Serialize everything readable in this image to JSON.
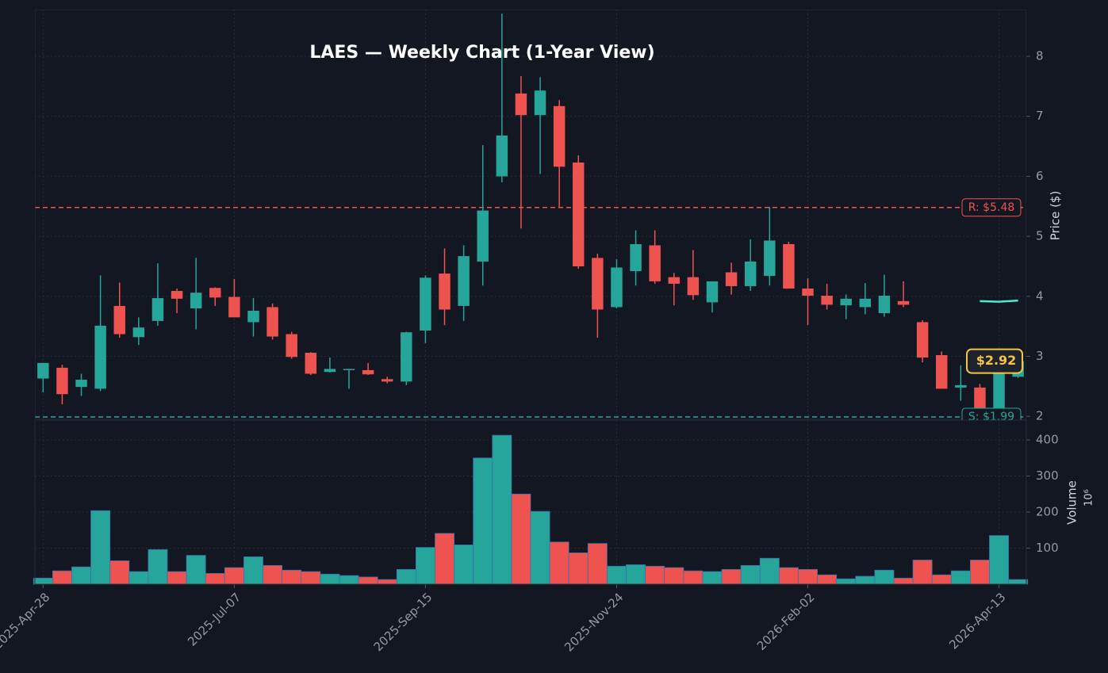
{
  "chart_data": [
    {
      "type": "candlestick",
      "title": "LAES — Weekly Chart (1-Year View)",
      "y_label": "Price ($)",
      "x": [
        "2025-Apr-28",
        "2025-May-05",
        "2025-May-12",
        "2025-May-19",
        "2025-May-26",
        "2025-Jun-02",
        "2025-Jun-09",
        "2025-Jun-16",
        "2025-Jun-23",
        "2025-Jun-30",
        "2025-Jul-07",
        "2025-Jul-14",
        "2025-Jul-21",
        "2025-Jul-28",
        "2025-Aug-04",
        "2025-Aug-11",
        "2025-Aug-18",
        "2025-Aug-25",
        "2025-Sep-01",
        "2025-Sep-08",
        "2025-Sep-15",
        "2025-Sep-22",
        "2025-Sep-29",
        "2025-Oct-06",
        "2025-Oct-13",
        "2025-Oct-20",
        "2025-Oct-27",
        "2025-Nov-03",
        "2025-Nov-10",
        "2025-Nov-17",
        "2025-Nov-24",
        "2025-Dec-01",
        "2025-Dec-08",
        "2025-Dec-15",
        "2025-Dec-22",
        "2025-Dec-29",
        "2026-Jan-05",
        "2026-Jan-12",
        "2026-Jan-19",
        "2026-Jan-26",
        "2026-Feb-02",
        "2026-Feb-09",
        "2026-Feb-16",
        "2026-Feb-23",
        "2026-Mar-02",
        "2026-Mar-09",
        "2026-Mar-16",
        "2026-Mar-23",
        "2026-Mar-30",
        "2026-Apr-06",
        "2026-Apr-13",
        "2026-Apr-20"
      ],
      "open": [
        2.63,
        2.81,
        2.49,
        2.46,
        3.84,
        3.32,
        3.59,
        4.09,
        3.8,
        4.14,
        3.99,
        3.57,
        3.82,
        3.37,
        3.06,
        2.74,
        2.77,
        2.77,
        2.62,
        2.58,
        3.43,
        4.38,
        3.84,
        4.58,
        6.0,
        7.38,
        7.02,
        7.17,
        6.23,
        4.64,
        3.82,
        4.42,
        4.85,
        4.32,
        4.32,
        3.9,
        4.4,
        4.17,
        4.34,
        4.87,
        4.13,
        4.01,
        3.85,
        3.82,
        3.72,
        3.92,
        3.57,
        3.02,
        2.48,
        2.48,
        1.93,
        2.66
      ],
      "high": [
        2.89,
        2.86,
        2.71,
        4.35,
        4.23,
        3.65,
        4.55,
        4.13,
        4.64,
        4.15,
        4.29,
        3.97,
        3.88,
        3.41,
        3.07,
        2.98,
        2.79,
        2.89,
        2.66,
        3.41,
        4.35,
        4.8,
        4.85,
        6.52,
        8.71,
        7.67,
        7.65,
        7.27,
        6.35,
        4.71,
        4.62,
        5.1,
        5.1,
        4.39,
        4.77,
        4.25,
        4.56,
        4.95,
        5.49,
        4.91,
        4.3,
        4.21,
        4.03,
        4.22,
        4.36,
        4.25,
        3.6,
        3.08,
        2.85,
        2.54,
        2.95,
        2.95
      ],
      "low": [
        2.4,
        2.2,
        2.34,
        2.42,
        3.31,
        3.19,
        3.51,
        3.72,
        3.45,
        3.84,
        3.65,
        3.33,
        3.28,
        2.96,
        2.69,
        2.73,
        2.46,
        2.69,
        2.55,
        2.52,
        3.22,
        3.52,
        3.59,
        4.18,
        5.9,
        5.13,
        6.04,
        5.47,
        4.46,
        3.31,
        3.8,
        4.18,
        4.21,
        3.85,
        3.94,
        3.73,
        4.03,
        4.09,
        4.18,
        4.13,
        3.52,
        3.78,
        3.62,
        3.7,
        3.66,
        3.82,
        2.9,
        2.46,
        2.26,
        2.11,
        1.9,
        2.64
      ],
      "close": [
        2.89,
        2.37,
        2.61,
        3.51,
        3.37,
        3.48,
        3.97,
        3.96,
        4.06,
        3.98,
        3.65,
        3.76,
        3.33,
        2.99,
        2.71,
        2.79,
        2.79,
        2.7,
        2.58,
        3.4,
        4.31,
        3.78,
        4.67,
        5.43,
        6.68,
        7.02,
        7.43,
        6.16,
        4.5,
        3.78,
        4.48,
        4.87,
        4.25,
        4.21,
        4.02,
        4.25,
        4.17,
        4.58,
        4.93,
        4.13,
        4.01,
        3.86,
        3.96,
        3.96,
        4.01,
        3.86,
        2.98,
        2.46,
        2.52,
        2.12,
        2.88,
        2.92
      ],
      "up_color": "#26a69a",
      "down_color": "#ef5350",
      "overlay_line": {
        "x": [
          "2026-Apr-06",
          "2026-Apr-13",
          "2026-Apr-20"
        ],
        "values": [
          3.92,
          3.91,
          3.93
        ],
        "color": "#4de8d8"
      },
      "levels": [
        {
          "label": "R: $5.48",
          "value": 5.48,
          "color": "#ef5350"
        },
        {
          "label": "S: $1.99",
          "value": 1.99,
          "color": "#26a69a"
        }
      ],
      "last_price": {
        "value": 2.92,
        "label": "$2.92",
        "color": "#f5c542"
      },
      "xlim": [
        "2025-Apr-25",
        "2026-Apr-23"
      ],
      "ylim": [
        1.95,
        8.78
      ],
      "yticks": [
        2,
        3,
        4,
        5,
        6,
        7,
        8
      ],
      "grid": true
    },
    {
      "type": "bar",
      "y_label": "Volume",
      "y_scale_label": "10⁶",
      "values": [
        17,
        37,
        48,
        204,
        65,
        35,
        96,
        35,
        80,
        30,
        46,
        76,
        52,
        39,
        35,
        28,
        24,
        20,
        13,
        41,
        102,
        141,
        109,
        350,
        413,
        250,
        202,
        117,
        87,
        113,
        50,
        54,
        50,
        46,
        37,
        35,
        41,
        52,
        72,
        46,
        41,
        26,
        15,
        22,
        39,
        17,
        67,
        26,
        37,
        67,
        135,
        13
      ],
      "edge_color": "#3b6fb0",
      "xticks": [
        "2025-Apr-28",
        "2025-Jul-07",
        "2025-Sep-15",
        "2025-Nov-24",
        "2026-Feb-02",
        "2026-Apr-13"
      ],
      "ylim": [
        0,
        455
      ],
      "yticks": [
        100,
        200,
        300,
        400
      ],
      "grid": true
    }
  ]
}
